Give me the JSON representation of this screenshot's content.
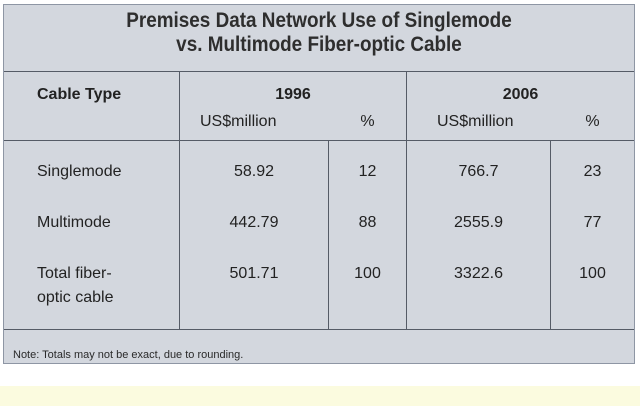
{
  "chart_data": {
    "type": "table",
    "title_lines": [
      "Premises Data Network Use of Singlemode",
      "vs. Multimode Fiber-optic Cable"
    ],
    "header": {
      "row_label": "Cable Type",
      "years": [
        "1996",
        "2006"
      ],
      "unit_value": "US$million",
      "unit_pct": "%"
    },
    "rows": [
      {
        "label": [
          "Singlemode"
        ],
        "v1996": "58.92",
        "p1996": "12",
        "v2006": "766.7",
        "p2006": "23"
      },
      {
        "label": [
          "Multimode"
        ],
        "v1996": "442.79",
        "p1996": "88",
        "v2006": "2555.9",
        "p2006": "77"
      },
      {
        "label": [
          "Total fiber-",
          "optic cable"
        ],
        "v1996": "501.71",
        "p1996": "100",
        "v2006": "3322.6",
        "p2006": "100"
      }
    ],
    "note": "Note: Totals may not be exact, due to rounding."
  }
}
